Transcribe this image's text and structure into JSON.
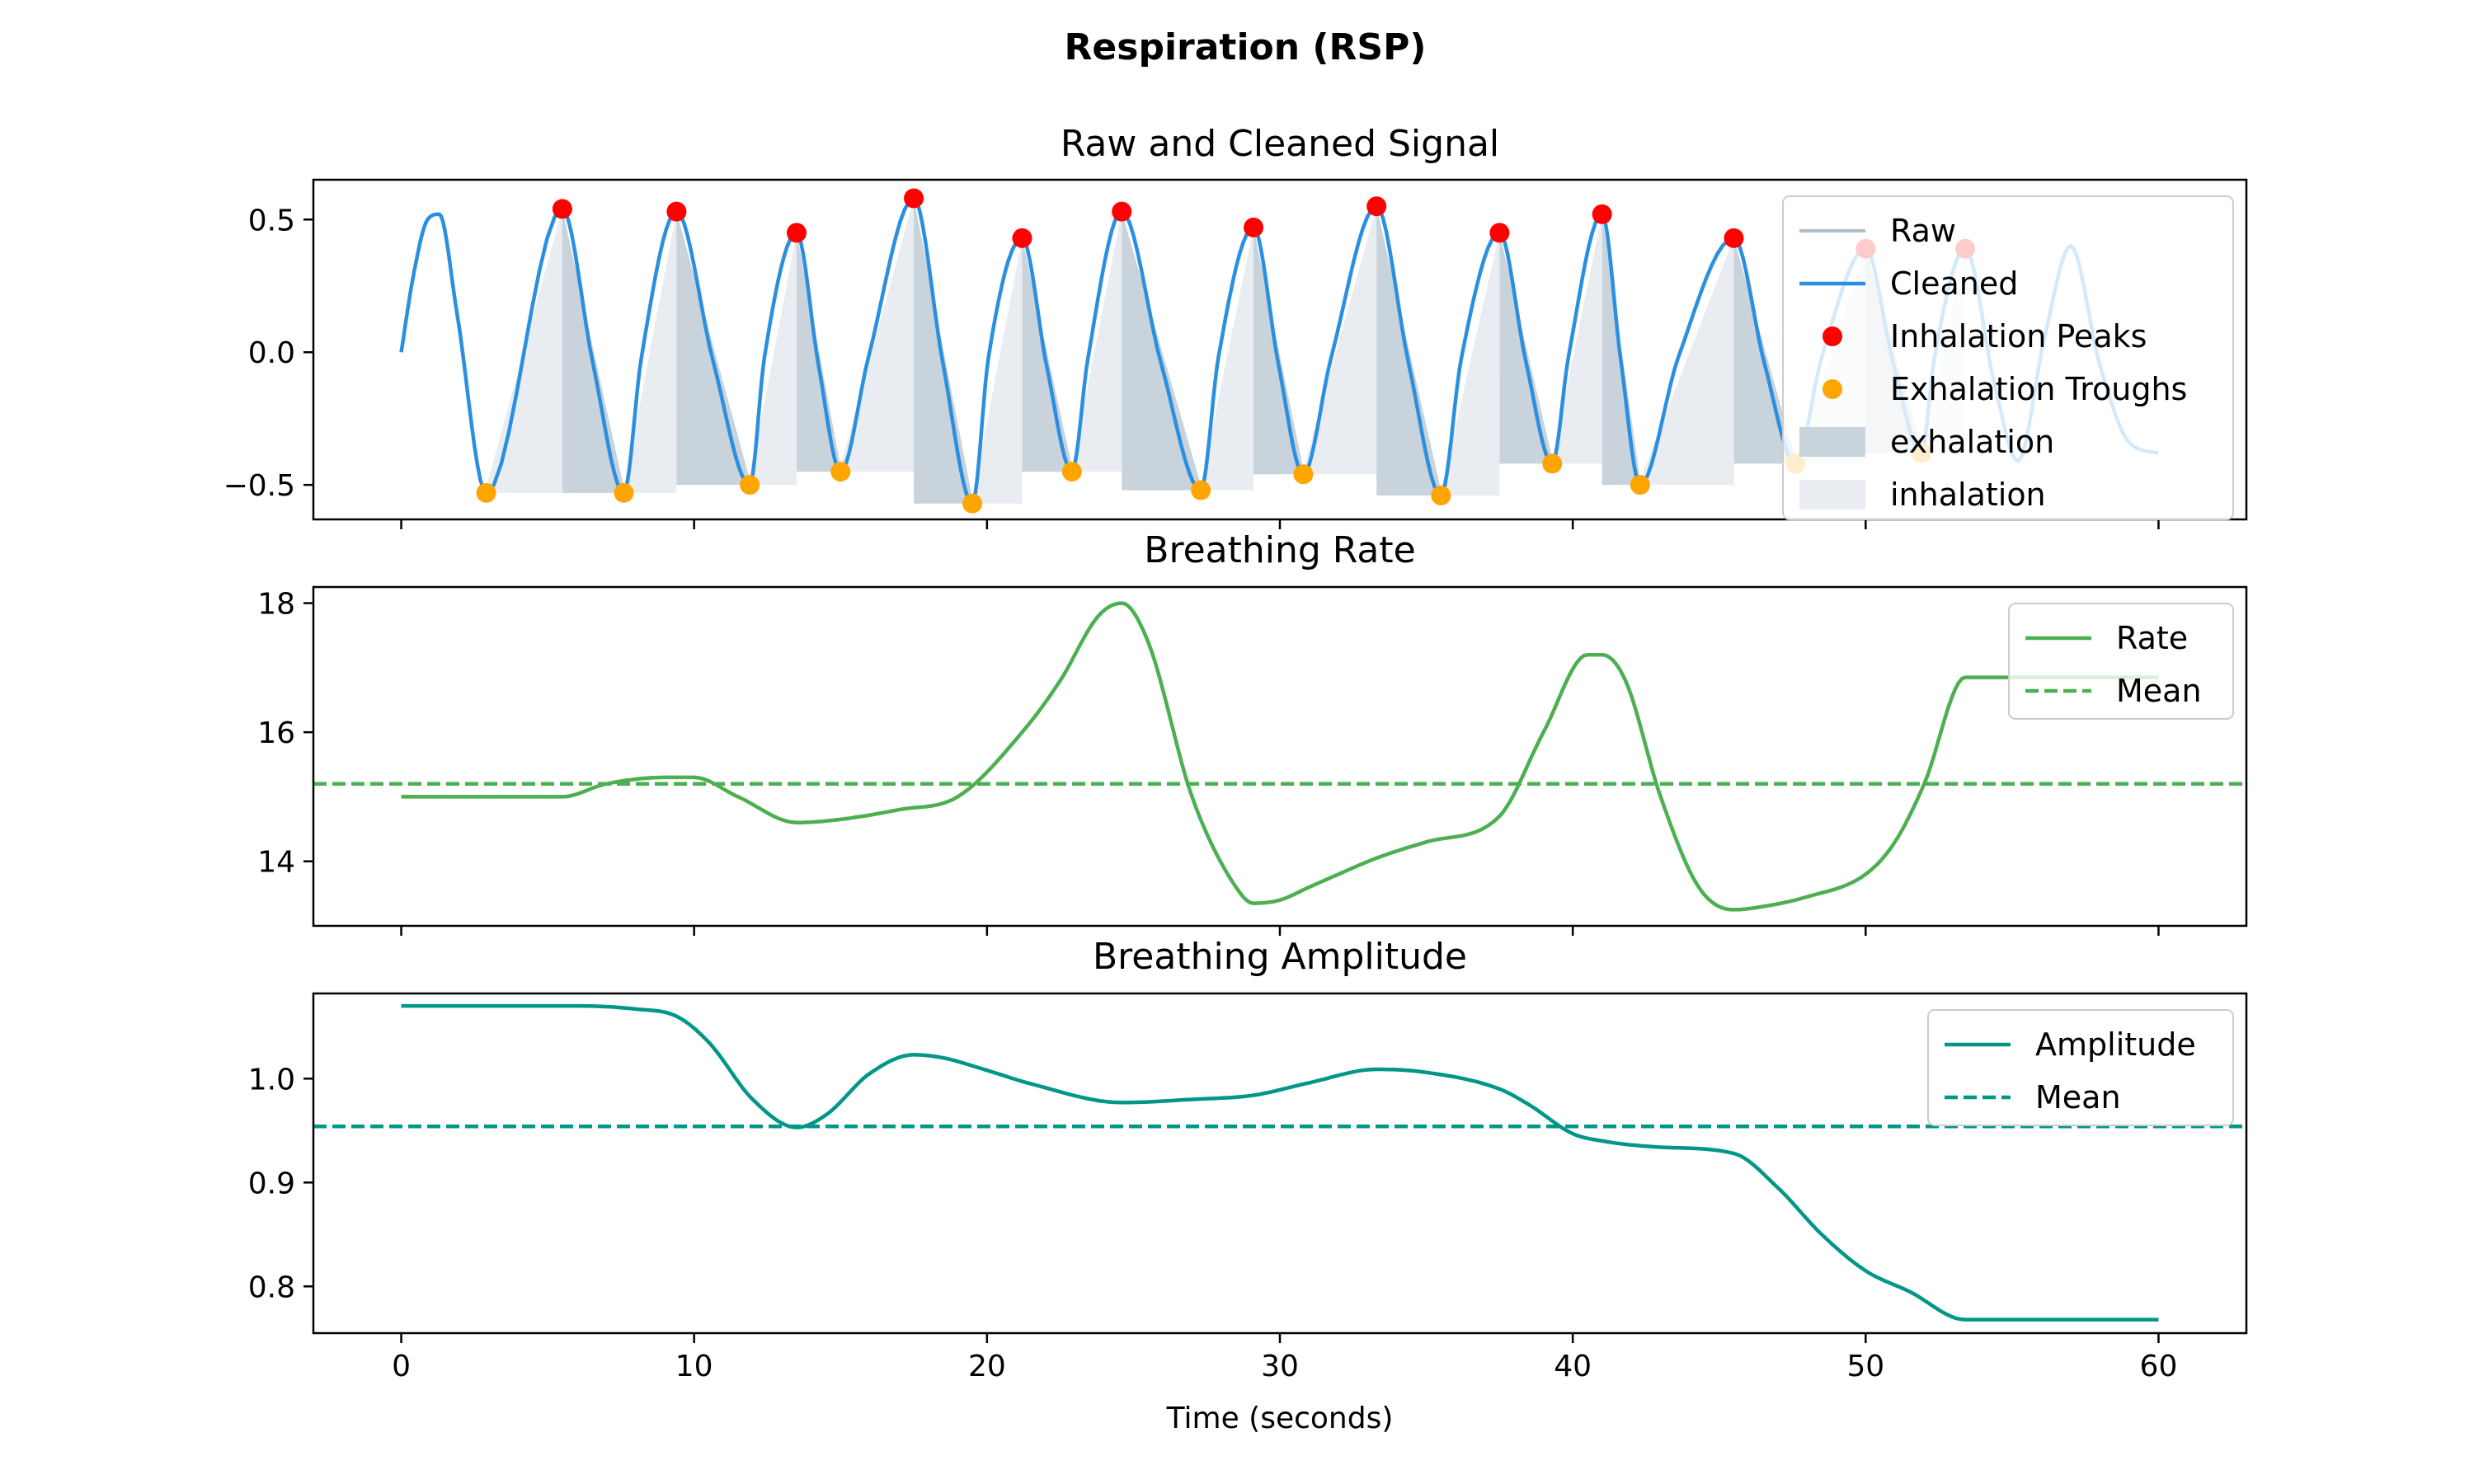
{
  "figure": {
    "suptitle": "Respiration (RSP)",
    "xlabel": "Time (seconds)"
  },
  "colors": {
    "raw": "#B0BCC8",
    "cleaned": "#2B8FE0",
    "peaks": "#FF0000",
    "troughs": "#FFA500",
    "exhalation": "#C9D3DB",
    "inhalation": "#E9EDF1",
    "rate": "#4CAF50",
    "amplitude": "#009688"
  },
  "chart_data": [
    {
      "type": "line",
      "title": "Raw and Cleaned Signal",
      "xlim": [
        -3,
        63
      ],
      "ylim": [
        -0.63,
        0.65
      ],
      "xticks": [
        0,
        10,
        20,
        30,
        40,
        50,
        60
      ],
      "xticklabels": [
        "0",
        "10",
        "20",
        "30",
        "40",
        "50",
        "60"
      ],
      "yticks": [
        -0.5,
        0.0,
        0.5
      ],
      "yticklabels": [
        "−0.5",
        "0.0",
        "0.5"
      ],
      "legend": {
        "position": "top-right",
        "entries": [
          "Raw",
          "Cleaned",
          "Inhalation Peaks",
          "Exhalation Troughs",
          "exhalation",
          "inhalation"
        ]
      },
      "series": [
        {
          "name": "Raw",
          "type": "line"
        },
        {
          "name": "Cleaned",
          "type": "line"
        }
      ],
      "inhalation_peaks": {
        "name": "Inhalation Peaks",
        "x": [
          5.5,
          9.4,
          13.5,
          17.5,
          21.2,
          24.6,
          29.1,
          33.3,
          37.5,
          41.0,
          45.5,
          50.0,
          53.4
        ],
        "y": [
          0.54,
          0.53,
          0.45,
          0.58,
          0.43,
          0.53,
          0.47,
          0.55,
          0.45,
          0.52,
          0.43,
          0.39,
          0.39
        ]
      },
      "exhalation_troughs": {
        "name": "Exhalation Troughs",
        "x": [
          2.9,
          7.6,
          11.9,
          15.0,
          19.5,
          22.9,
          27.3,
          30.8,
          35.5,
          39.3,
          42.3,
          47.6,
          51.9
        ],
        "y": [
          -0.53,
          -0.53,
          -0.5,
          -0.45,
          -0.57,
          -0.45,
          -0.52,
          -0.46,
          -0.54,
          -0.42,
          -0.5,
          -0.42,
          -0.38
        ]
      },
      "cleaned_signal": {
        "initial": {
          "x": [
            0,
            0.4,
            0.9,
            1.3,
            1.9,
            2.9
          ],
          "y": [
            0.0,
            0.28,
            0.5,
            0.52,
            0.15,
            -0.53
          ]
        },
        "tail": {
          "x": [
            53.4,
            54.4,
            55.2,
            56.1,
            57.0,
            58.0,
            59.0,
            60.0
          ],
          "y": [
            0.39,
            -0.12,
            -0.41,
            0.05,
            0.4,
            -0.05,
            -0.34,
            -0.38
          ]
        }
      }
    },
    {
      "type": "line",
      "title": "Breathing Rate",
      "xlim": [
        -3,
        63
      ],
      "ylim": [
        13.0,
        18.25
      ],
      "xticks": [
        0,
        10,
        20,
        30,
        40,
        50,
        60
      ],
      "yticks": [
        14,
        16,
        18
      ],
      "yticklabels": [
        "14",
        "16",
        "18"
      ],
      "legend": {
        "position": "top-right",
        "entries": [
          "Rate",
          "Mean"
        ]
      },
      "mean": 15.2,
      "series": [
        {
          "name": "Rate",
          "x": [
            0,
            5.5,
            7,
            9,
            10,
            11.5,
            13.5,
            15,
            17,
            19,
            21.2,
            22.5,
            23.8,
            24.6,
            25.5,
            27,
            28.5,
            29.1,
            30,
            31,
            32,
            33.3,
            35,
            37.5,
            39,
            40.5,
            41,
            41.8,
            43,
            44.3,
            45.5,
            46.5,
            48,
            50,
            51,
            52,
            53.4,
            55,
            57,
            60
          ],
          "y": [
            15.0,
            15.0,
            15.2,
            15.3,
            15.3,
            15.0,
            14.6,
            14.65,
            14.8,
            15.0,
            16.0,
            16.8,
            17.8,
            18.0,
            17.4,
            15.0,
            13.6,
            13.35,
            13.4,
            13.6,
            13.8,
            14.05,
            14.3,
            14.7,
            16.0,
            17.2,
            17.2,
            16.8,
            15.0,
            13.6,
            13.25,
            13.3,
            13.45,
            13.8,
            14.3,
            15.2,
            16.85,
            16.85,
            16.85,
            16.85
          ]
        },
        {
          "name": "Mean",
          "y": 15.2
        }
      ]
    },
    {
      "type": "line",
      "title": "Breathing Amplitude",
      "xlim": [
        -3,
        63
      ],
      "ylim": [
        0.755,
        1.082
      ],
      "xticks": [
        0,
        10,
        20,
        30,
        40,
        50,
        60
      ],
      "xticklabels": [
        "0",
        "10",
        "20",
        "30",
        "40",
        "50",
        "60"
      ],
      "yticks": [
        0.8,
        0.9,
        1.0
      ],
      "yticklabels": [
        "0.8",
        "0.9",
        "1.0"
      ],
      "legend": {
        "position": "top-right",
        "entries": [
          "Amplitude",
          "Mean"
        ]
      },
      "mean": 0.954,
      "series": [
        {
          "name": "Amplitude",
          "x": [
            0,
            6,
            8,
            9.4,
            10.5,
            12,
            13.5,
            14.5,
            16,
            17.5,
            18.5,
            20,
            21.5,
            24.6,
            27,
            29.1,
            31,
            33.3,
            35,
            37.5,
            38.5,
            40,
            41,
            43,
            45.5,
            47,
            48.5,
            50,
            51.5,
            53.4,
            56,
            60
          ],
          "y": [
            1.07,
            1.07,
            1.067,
            1.06,
            1.035,
            0.98,
            0.953,
            0.965,
            1.005,
            1.023,
            1.02,
            1.008,
            0.995,
            0.977,
            0.98,
            0.984,
            0.996,
            1.009,
            1.006,
            0.99,
            0.975,
            0.947,
            0.94,
            0.934,
            0.928,
            0.895,
            0.85,
            0.815,
            0.795,
            0.768,
            0.768,
            0.768
          ]
        },
        {
          "name": "Mean",
          "y": 0.954
        }
      ]
    }
  ]
}
